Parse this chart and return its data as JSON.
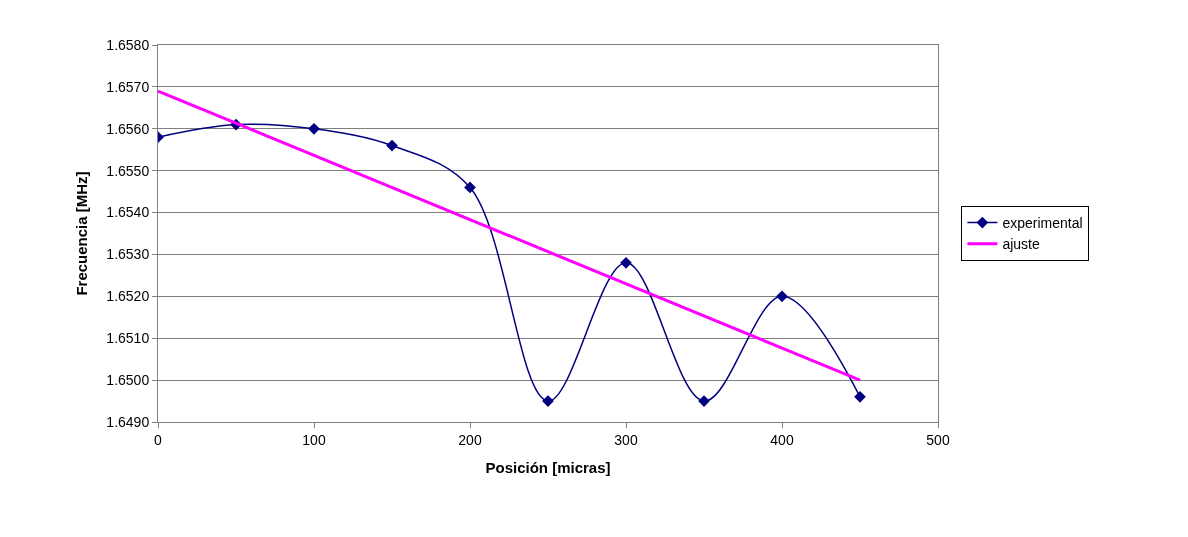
{
  "chart_data": {
    "type": "line",
    "xlabel": "Posición [micras]",
    "ylabel": "Frecuencia [MHz]",
    "xlim": [
      0,
      500
    ],
    "xticks": [
      0,
      100,
      200,
      300,
      400,
      500
    ],
    "ylim": [
      1.649,
      1.658
    ],
    "yticks": [
      {
        "value": 1.649,
        "label": "1.6490"
      },
      {
        "value": 1.65,
        "label": "1.6500"
      },
      {
        "value": 1.651,
        "label": "1.6510"
      },
      {
        "value": 1.652,
        "label": "1.6520"
      },
      {
        "value": 1.653,
        "label": "1.6530"
      },
      {
        "value": 1.654,
        "label": "1.6540"
      },
      {
        "value": 1.655,
        "label": "1.6550"
      },
      {
        "value": 1.656,
        "label": "1.6560"
      },
      {
        "value": 1.657,
        "label": "1.6570"
      },
      {
        "value": 1.658,
        "label": "1.6580"
      }
    ],
    "grid": "y",
    "legend": "right",
    "series": [
      {
        "name": "experimental",
        "color": "#000080",
        "marker": "diamond",
        "x": [
          0,
          50,
          100,
          150,
          200,
          250,
          300,
          350,
          400,
          450
        ],
        "values": [
          1.6558,
          1.6561,
          1.656,
          1.6556,
          1.6546,
          1.6495,
          1.6528,
          1.6495,
          1.652,
          1.6496
        ]
      },
      {
        "name": "ajuste",
        "color": "#ff00ff",
        "marker": "none",
        "x": [
          0,
          450
        ],
        "values": [
          1.6569,
          1.65
        ]
      }
    ]
  }
}
